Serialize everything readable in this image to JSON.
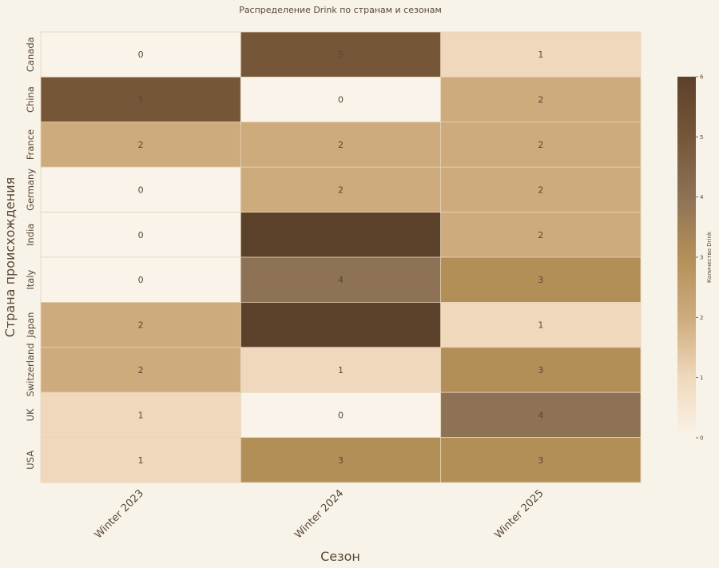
{
  "chart_data": {
    "type": "heatmap",
    "title": "Распределение Drink по странам и сезонам",
    "xlabel": "Сезон",
    "ylabel": "Страна происхождения",
    "x_categories": [
      "Winter 2023",
      "Winter 2024",
      "Winter 2025"
    ],
    "y_categories": [
      "Canada",
      "China",
      "France",
      "Germany",
      "India",
      "Italy",
      "Japan",
      "Switzerland",
      "UK",
      "USA"
    ],
    "values": [
      [
        0,
        5,
        1
      ],
      [
        5,
        0,
        2
      ],
      [
        2,
        2,
        2
      ],
      [
        0,
        2,
        2
      ],
      [
        0,
        6,
        2
      ],
      [
        0,
        4,
        3
      ],
      [
        2,
        6,
        1
      ],
      [
        2,
        1,
        3
      ],
      [
        1,
        0,
        4
      ],
      [
        1,
        3,
        3
      ]
    ],
    "show_labels": [
      [
        true,
        true,
        true
      ],
      [
        true,
        true,
        true
      ],
      [
        true,
        true,
        true
      ],
      [
        true,
        true,
        true
      ],
      [
        true,
        false,
        true
      ],
      [
        true,
        true,
        true
      ],
      [
        true,
        false,
        true
      ],
      [
        true,
        true,
        true
      ],
      [
        true,
        true,
        true
      ],
      [
        true,
        true,
        true
      ]
    ],
    "colorbar": {
      "label": "Количество Drink",
      "range": [
        0,
        6
      ],
      "ticks": [
        0,
        1,
        2,
        3,
        4,
        5,
        6
      ],
      "colors": [
        "#faf3ea",
        "#f0d8bc",
        "#cdab7d",
        "#b38f58",
        "#8d7256",
        "#765639",
        "#5c412a"
      ]
    }
  }
}
